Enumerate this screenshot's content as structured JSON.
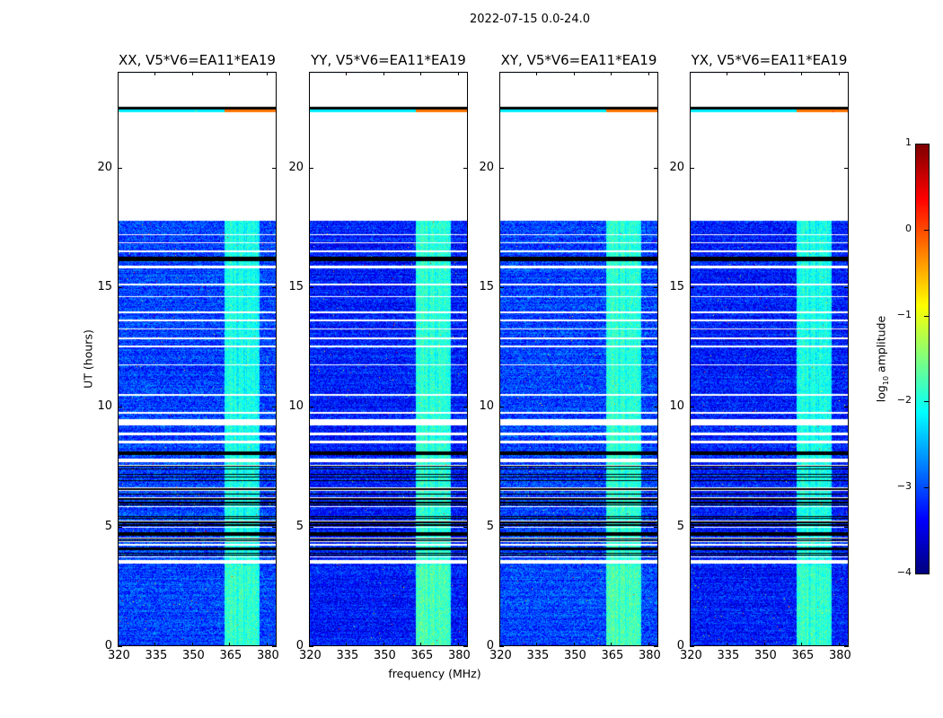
{
  "suptitle": "2022-07-15 0.0-24.0",
  "chart_data": {
    "type": "heatmap",
    "xlabel": "frequency (MHz)",
    "ylabel": "UT (hours)",
    "xlim": [
      320,
      384
    ],
    "ylim": [
      0,
      24
    ],
    "xticks": [
      320,
      335,
      350,
      365,
      380
    ],
    "yticks": [
      0,
      5,
      10,
      15,
      20
    ],
    "panels": [
      {
        "title": "XX, V5*V6=EA11*EA19",
        "rfi_level": -1.9,
        "noise_level": -3.2
      },
      {
        "title": "YY, V5*V6=EA11*EA19",
        "rfi_level": -1.8,
        "noise_level": -3.4
      },
      {
        "title": "XY, V5*V6=EA11*EA19",
        "rfi_level": -1.8,
        "noise_level": -3.2
      },
      {
        "title": "YX, V5*V6=EA11*EA19",
        "rfi_level": -1.9,
        "noise_level": -3.4
      }
    ],
    "rfi_band_mhz": [
      363,
      377
    ],
    "flagged_hours": [
      [
        3.45,
        3.6
      ],
      [
        7.7,
        7.85
      ],
      [
        8.5,
        8.6
      ],
      [
        8.85,
        8.95
      ],
      [
        9.25,
        9.5
      ],
      [
        9.75,
        9.82
      ],
      [
        10.5,
        10.56
      ],
      [
        11.75,
        11.8
      ],
      [
        12.5,
        12.58
      ],
      [
        12.85,
        12.9
      ],
      [
        13.25,
        13.3
      ],
      [
        13.6,
        13.65
      ],
      [
        13.95,
        14.0
      ],
      [
        14.6,
        14.65
      ],
      [
        15.1,
        15.15
      ],
      [
        15.8,
        15.9
      ],
      [
        16.5,
        16.55
      ],
      [
        16.85,
        16.9
      ],
      [
        17.2,
        17.25
      ],
      [
        17.8,
        22.35
      ],
      [
        22.55,
        24
      ]
    ],
    "dark_hours": [
      [
        8.0,
        8.15
      ],
      [
        16.1,
        16.3
      ],
      [
        22.44,
        22.55
      ]
    ],
    "dense_flag_range_hours": [
      3.6,
      7.6
    ],
    "colorbar": {
      "label": "log10 amplitude",
      "range": [
        -4,
        1
      ],
      "ticks": [
        1,
        0,
        -1,
        -2,
        -3,
        -4
      ],
      "tick_labels": [
        "1",
        "0",
        "−1",
        "−2",
        "−3",
        "−4"
      ],
      "colormap": "jet"
    }
  }
}
